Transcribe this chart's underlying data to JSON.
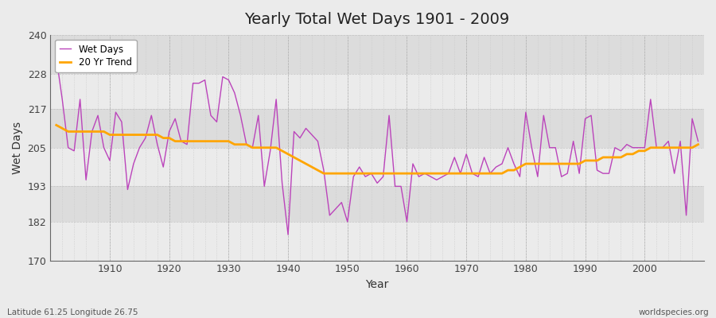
{
  "title": "Yearly Total Wet Days 1901 - 2009",
  "xlabel": "Year",
  "ylabel": "Wet Days",
  "bottom_left_label": "Latitude 61.25 Longitude 26.75",
  "bottom_right_label": "worldspecies.org",
  "ylim": [
    170,
    240
  ],
  "yticks": [
    170,
    182,
    193,
    205,
    217,
    228,
    240
  ],
  "xlim": [
    1901,
    2009
  ],
  "wet_days_color": "#BB44BB",
  "trend_color": "#FFA500",
  "background_color": "#EBEBEB",
  "band_color_light": "#F0F0F0",
  "band_color_dark": "#E0E0E0",
  "years": [
    1901,
    1902,
    1903,
    1904,
    1905,
    1906,
    1907,
    1908,
    1909,
    1910,
    1911,
    1912,
    1913,
    1914,
    1915,
    1916,
    1917,
    1918,
    1919,
    1920,
    1921,
    1922,
    1923,
    1924,
    1925,
    1926,
    1927,
    1928,
    1929,
    1930,
    1931,
    1932,
    1933,
    1934,
    1935,
    1936,
    1937,
    1938,
    1939,
    1940,
    1941,
    1942,
    1943,
    1944,
    1945,
    1946,
    1947,
    1948,
    1949,
    1950,
    1951,
    1952,
    1953,
    1954,
    1955,
    1956,
    1957,
    1958,
    1959,
    1960,
    1961,
    1962,
    1963,
    1964,
    1965,
    1966,
    1967,
    1968,
    1969,
    1970,
    1971,
    1972,
    1973,
    1974,
    1975,
    1976,
    1977,
    1978,
    1979,
    1980,
    1981,
    1982,
    1983,
    1984,
    1985,
    1986,
    1987,
    1988,
    1989,
    1990,
    1991,
    1992,
    1993,
    1994,
    1995,
    1996,
    1997,
    1998,
    1999,
    2000,
    2001,
    2002,
    2003,
    2004,
    2005,
    2006,
    2007,
    2008,
    2009
  ],
  "wet_days": [
    233,
    220,
    205,
    204,
    220,
    195,
    210,
    215,
    205,
    201,
    216,
    213,
    192,
    200,
    205,
    208,
    215,
    206,
    199,
    210,
    214,
    207,
    206,
    225,
    225,
    226,
    215,
    213,
    227,
    226,
    222,
    215,
    206,
    205,
    215,
    193,
    204,
    220,
    194,
    178,
    210,
    208,
    211,
    209,
    207,
    198,
    184,
    186,
    188,
    182,
    196,
    199,
    196,
    197,
    194,
    196,
    215,
    193,
    193,
    182,
    200,
    196,
    197,
    196,
    195,
    196,
    197,
    202,
    197,
    203,
    197,
    196,
    202,
    197,
    199,
    200,
    205,
    200,
    196,
    216,
    205,
    196,
    215,
    205,
    205,
    196,
    197,
    207,
    197,
    214,
    215,
    198,
    197,
    197,
    205,
    204,
    206,
    205,
    205,
    205,
    220,
    205,
    205,
    207,
    197,
    207,
    184,
    214,
    207
  ],
  "trend": [
    212,
    211,
    210,
    210,
    210,
    210,
    210,
    210,
    210,
    209,
    209,
    209,
    209,
    209,
    209,
    209,
    209,
    209,
    208,
    208,
    207,
    207,
    207,
    207,
    207,
    207,
    207,
    207,
    207,
    207,
    206,
    206,
    206,
    205,
    205,
    205,
    205,
    205,
    204,
    203,
    202,
    201,
    200,
    199,
    198,
    197,
    197,
    197,
    197,
    197,
    197,
    197,
    197,
    197,
    197,
    197,
    197,
    197,
    197,
    197,
    197,
    197,
    197,
    197,
    197,
    197,
    197,
    197,
    197,
    197,
    197,
    197,
    197,
    197,
    197,
    197,
    198,
    198,
    199,
    200,
    200,
    200,
    200,
    200,
    200,
    200,
    200,
    200,
    200,
    201,
    201,
    201,
    202,
    202,
    202,
    202,
    203,
    203,
    204,
    204,
    205,
    205,
    205,
    205,
    205,
    205,
    205,
    205,
    206
  ]
}
